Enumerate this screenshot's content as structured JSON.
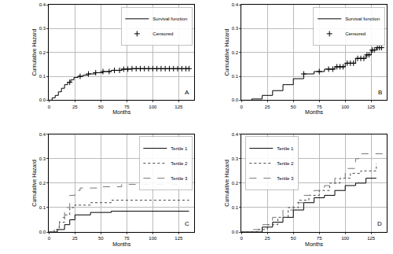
{
  "chart_data": [
    {
      "type": "step",
      "annotation": "A",
      "x_label": "Months",
      "y_label": "Cumulative Hazard",
      "xlim": [
        0,
        140
      ],
      "xticks": [
        0,
        25,
        50,
        75,
        100,
        125
      ],
      "ylim": [
        0,
        0.4
      ],
      "yticks": [
        {
          "value": 0,
          "label": "0.0"
        },
        0.1,
        0.2,
        0.3,
        0.4
      ],
      "grid": true,
      "legend": "top right",
      "series": [
        {
          "name": "Survival function",
          "type": "line",
          "color": "#000000",
          "line_style": "solid",
          "x": [
            0,
            3,
            6,
            9,
            12,
            15,
            18,
            21,
            24,
            28,
            33,
            38,
            45,
            52,
            60,
            70,
            80,
            135
          ],
          "values": [
            0,
            0.01,
            0.02,
            0.035,
            0.05,
            0.065,
            0.075,
            0.085,
            0.095,
            0.1,
            0.105,
            0.11,
            0.115,
            0.12,
            0.125,
            0.13,
            0.132,
            0.132
          ]
        },
        {
          "name": "Censored",
          "type": "scatter",
          "color": "#000000",
          "marker": "cross",
          "x": [
            20,
            30,
            38,
            45,
            52,
            58,
            63,
            68,
            72,
            76,
            80,
            84,
            88,
            92,
            96,
            100,
            104,
            108,
            112,
            116,
            120,
            124,
            128,
            132,
            135
          ],
          "values": [
            0.075,
            0.1,
            0.11,
            0.115,
            0.12,
            0.12,
            0.125,
            0.125,
            0.13,
            0.13,
            0.132,
            0.132,
            0.132,
            0.132,
            0.132,
            0.132,
            0.132,
            0.132,
            0.132,
            0.132,
            0.132,
            0.132,
            0.132,
            0.132,
            0.132
          ]
        }
      ]
    },
    {
      "type": "step",
      "annotation": "B",
      "x_label": "Months",
      "y_label": "Cumulative Hazard",
      "xlim": [
        0,
        140
      ],
      "xticks": [
        0,
        25,
        50,
        75,
        100,
        125
      ],
      "ylim": [
        0,
        0.4
      ],
      "yticks": [
        {
          "value": 0,
          "label": "0.0"
        },
        0.1,
        0.2,
        0.3,
        0.4
      ],
      "grid": true,
      "legend": "top right",
      "series": [
        {
          "name": "Survival function",
          "type": "line",
          "color": "#000000",
          "line_style": "solid",
          "x": [
            0,
            10,
            20,
            30,
            40,
            50,
            60,
            70,
            80,
            90,
            100,
            110,
            120,
            125,
            130,
            135
          ],
          "values": [
            0,
            0.005,
            0.02,
            0.04,
            0.065,
            0.09,
            0.11,
            0.12,
            0.13,
            0.14,
            0.155,
            0.175,
            0.19,
            0.21,
            0.22,
            0.22
          ]
        },
        {
          "name": "Censored",
          "type": "scatter",
          "color": "#000000",
          "marker": "cross",
          "x": [
            60,
            75,
            84,
            88,
            92,
            95,
            98,
            102,
            105,
            108,
            112,
            115,
            118,
            121,
            123,
            126,
            128,
            131,
            133,
            135
          ],
          "values": [
            0.11,
            0.12,
            0.13,
            0.13,
            0.14,
            0.14,
            0.14,
            0.155,
            0.155,
            0.155,
            0.175,
            0.175,
            0.175,
            0.19,
            0.19,
            0.21,
            0.21,
            0.22,
            0.22,
            0.22
          ]
        }
      ]
    },
    {
      "type": "step",
      "annotation": "C",
      "x_label": "Months",
      "y_label": "Cumulative Hazard",
      "xlim": [
        0,
        140
      ],
      "xticks": [
        0,
        25,
        50,
        75,
        100,
        125
      ],
      "ylim": [
        0,
        0.4
      ],
      "yticks": [
        {
          "value": 0,
          "label": "0.0"
        },
        0.1,
        0.2,
        0.3,
        0.4
      ],
      "grid": true,
      "legend": "top right",
      "series": [
        {
          "name": "Tertile 1",
          "type": "line",
          "color": "#000000",
          "line_style": "solid",
          "x": [
            0,
            8,
            15,
            20,
            25,
            40,
            60,
            135
          ],
          "values": [
            0,
            0.01,
            0.03,
            0.05,
            0.07,
            0.08,
            0.085,
            0.085
          ]
        },
        {
          "name": "Tertile 2",
          "type": "line",
          "color": "#444444",
          "line_style": "dot",
          "x": [
            0,
            5,
            10,
            15,
            20,
            25,
            40,
            60,
            135
          ],
          "values": [
            0,
            0.01,
            0.04,
            0.07,
            0.1,
            0.11,
            0.12,
            0.13,
            0.13
          ]
        },
        {
          "name": "Tertile 3",
          "type": "line",
          "color": "#777777",
          "line_style": "dash",
          "x": [
            0,
            5,
            10,
            15,
            20,
            25,
            30,
            50,
            70,
            135
          ],
          "values": [
            0,
            0.02,
            0.06,
            0.1,
            0.15,
            0.17,
            0.18,
            0.185,
            0.195,
            0.195
          ]
        }
      ]
    },
    {
      "type": "step",
      "annotation": "D",
      "x_label": "Months",
      "y_label": "Cumulative Hazard",
      "xlim": [
        0,
        140
      ],
      "xticks": [
        0,
        25,
        50,
        75,
        100,
        125
      ],
      "ylim": [
        0,
        0.4
      ],
      "yticks": [
        {
          "value": 0,
          "label": "0.0"
        },
        0.1,
        0.2,
        0.3,
        0.4
      ],
      "grid": true,
      "legend": "top left",
      "series": [
        {
          "name": "Tertile 1",
          "type": "line",
          "color": "#000000",
          "line_style": "solid",
          "x": [
            0,
            20,
            30,
            40,
            50,
            60,
            70,
            80,
            90,
            100,
            110,
            120,
            130
          ],
          "values": [
            0,
            0.02,
            0.04,
            0.06,
            0.09,
            0.12,
            0.14,
            0.15,
            0.17,
            0.19,
            0.2,
            0.22,
            0.22
          ]
        },
        {
          "name": "Tertile 2",
          "type": "line",
          "color": "#444444",
          "line_style": "dot",
          "x": [
            0,
            15,
            25,
            35,
            45,
            55,
            65,
            75,
            85,
            95,
            105,
            115,
            125,
            130
          ],
          "values": [
            0,
            0.01,
            0.03,
            0.06,
            0.1,
            0.13,
            0.15,
            0.17,
            0.2,
            0.22,
            0.24,
            0.25,
            0.25,
            0.28
          ]
        },
        {
          "name": "Tertile 3",
          "type": "line",
          "color": "#777777",
          "line_style": "dash",
          "x": [
            0,
            10,
            20,
            30,
            40,
            50,
            60,
            70,
            80,
            90,
            100,
            110,
            115,
            138
          ],
          "values": [
            0,
            0.01,
            0.03,
            0.06,
            0.09,
            0.12,
            0.15,
            0.17,
            0.19,
            0.22,
            0.26,
            0.3,
            0.32,
            0.32
          ]
        }
      ]
    }
  ]
}
